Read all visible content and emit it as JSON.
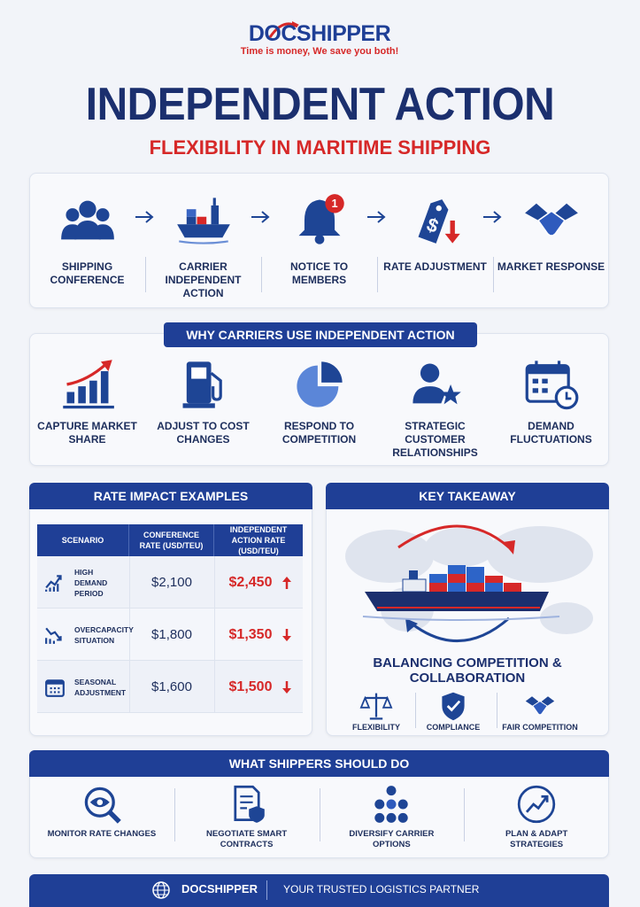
{
  "header": {
    "logo": "DOCSHIPPER",
    "tagline": "Time is money, We save you both!",
    "title": "INDEPENDENT ACTION",
    "subtitle": "FLEXIBILITY IN MARITIME SHIPPING"
  },
  "process": {
    "badge": "1",
    "steps": [
      "SHIPPING CONFERENCE",
      "CARRIER INDEPENDENT ACTION",
      "NOTICE TO MEMBERS",
      "RATE ADJUSTMENT",
      "MARKET RESPONSE"
    ]
  },
  "reasons": {
    "title": "WHY CARRIERS USE INDEPENDENT ACTION",
    "items": [
      "CAPTURE MARKET SHARE",
      "ADJUST TO COST CHANGES",
      "RESPOND TO COMPETITION",
      "STRATEGIC CUSTOMER RELATIONSHIPS",
      "DEMAND FLUCTUATIONS"
    ]
  },
  "rates": {
    "title": "RATE IMPACT EXAMPLES",
    "headers": [
      "SCENARIO",
      "CONFERENCE RATE (USD/TEU)",
      "INDEPENDENT ACTION RATE (USD/TEU)"
    ],
    "rows": [
      {
        "scenario": "HIGH DEMAND PERIOD",
        "conference": "$2,100",
        "independent": "$2,450",
        "trend": "up"
      },
      {
        "scenario": "OVERCAPACITY SITUATION",
        "conference": "$1,800",
        "independent": "$1,350",
        "trend": "down"
      },
      {
        "scenario": "SEASONAL ADJUSTMENT",
        "conference": "$1,600",
        "independent": "$1,500",
        "trend": "down"
      }
    ]
  },
  "takeaway": {
    "title": "KEY TAKEAWAY",
    "caption": "BALANCING COMPETITION & COLLABORATION",
    "items": [
      "FLEXIBILITY",
      "COMPLIANCE",
      "FAIR COMPETITION"
    ]
  },
  "shippers": {
    "title": "WHAT SHIPPERS SHOULD DO",
    "items": [
      "MONITOR RATE CHANGES",
      "NEGOTIATE SMART CONTRACTS",
      "DIVERSIFY CARRIER OPTIONS",
      "PLAN & ADAPT STRATEGIES"
    ]
  },
  "footer": {
    "brand": "DOCSHIPPER",
    "tagline": "YOUR TRUSTED LOGISTICS PARTNER"
  }
}
